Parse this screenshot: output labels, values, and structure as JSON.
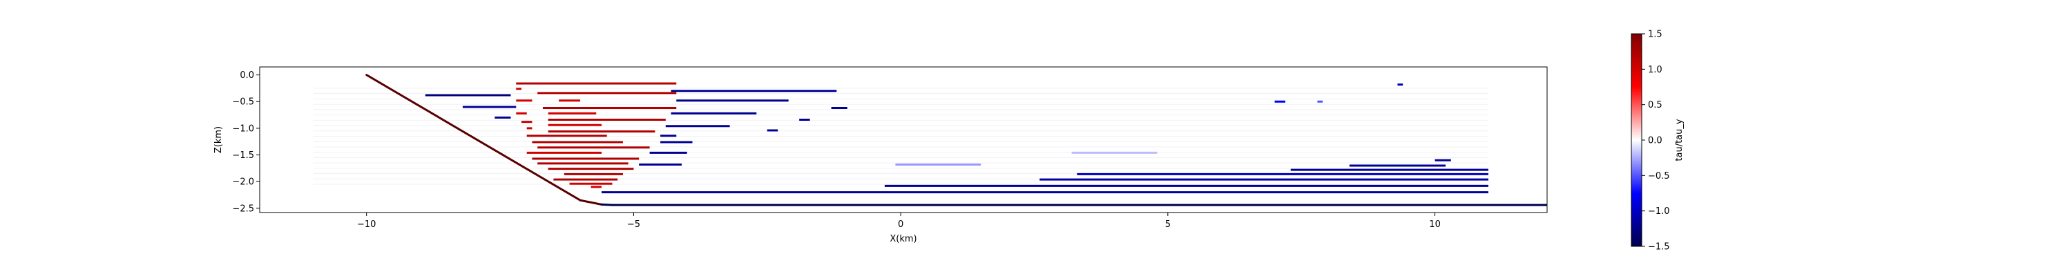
{
  "chart_data": {
    "type": "line",
    "title": "",
    "xlabel": "X(km)",
    "ylabel": "Z(km)",
    "xlim": [
      -12.0,
      12.1
    ],
    "ylim": [
      -2.58,
      0.15
    ],
    "xticks": [
      -10,
      -5,
      0,
      5,
      10
    ],
    "xtick_labels": [
      "−10",
      "−5",
      "0",
      "5",
      "10"
    ],
    "yticks": [
      0.0,
      -0.5,
      -1.0,
      -1.5,
      -2.0,
      -2.5
    ],
    "ytick_labels": [
      "0.0",
      "−0.5",
      "−1.0",
      "−1.5",
      "−2.0",
      "−2.5"
    ],
    "grid": false,
    "legend": "none",
    "colorbar": {
      "label": "tau/tau_y",
      "range": [
        -1.5,
        1.5
      ],
      "ticks": [
        1.5,
        1.0,
        0.5,
        0.0,
        -0.5,
        -1.0,
        -1.5
      ],
      "tick_labels": [
        "1.5",
        "1.0",
        "0.5",
        "0.0",
        "−0.5",
        "−1.0",
        "−1.5"
      ],
      "colormap": "seismic",
      "colors": [
        "#00004c",
        "#0000ff",
        "#ffffff",
        "#ff0000",
        "#7f0000"
      ]
    },
    "boundary": {
      "name": "boundary",
      "x": [
        -10.0,
        -6.0,
        -5.6,
        -5.4,
        12.1
      ],
      "z": [
        0.0,
        -2.35,
        -2.43,
        -2.44,
        -2.44
      ],
      "color_left": "#5a0000",
      "color_right": "#00004c"
    },
    "segments": [
      {
        "x0": -7.2,
        "x1": -4.2,
        "z": -0.16,
        "v": 1.2
      },
      {
        "x0": -7.2,
        "x1": -7.1,
        "z": -0.26,
        "v": 1.0
      },
      {
        "x0": -6.8,
        "x1": -4.2,
        "z": -0.34,
        "v": 1.2
      },
      {
        "x0": -7.2,
        "x1": -6.9,
        "z": -0.48,
        "v": 1.0
      },
      {
        "x0": -6.4,
        "x1": -6.0,
        "z": -0.48,
        "v": 1.0
      },
      {
        "x0": -6.7,
        "x1": -4.2,
        "z": -0.62,
        "v": 1.2
      },
      {
        "x0": -7.2,
        "x1": -7.0,
        "z": -0.72,
        "v": 1.0
      },
      {
        "x0": -6.6,
        "x1": -5.7,
        "z": -0.72,
        "v": 1.0
      },
      {
        "x0": -6.6,
        "x1": -4.4,
        "z": -0.84,
        "v": 1.2
      },
      {
        "x0": -7.1,
        "x1": -6.9,
        "z": -0.88,
        "v": 1.0
      },
      {
        "x0": -6.6,
        "x1": -5.6,
        "z": -0.94,
        "v": 1.0
      },
      {
        "x0": -7.0,
        "x1": -6.9,
        "z": -1.0,
        "v": 1.0
      },
      {
        "x0": -6.6,
        "x1": -4.6,
        "z": -1.06,
        "v": 1.2
      },
      {
        "x0": -7.0,
        "x1": -5.5,
        "z": -1.14,
        "v": 1.2
      },
      {
        "x0": -6.9,
        "x1": -5.2,
        "z": -1.26,
        "v": 1.2
      },
      {
        "x0": -6.8,
        "x1": -4.7,
        "z": -1.36,
        "v": 1.2
      },
      {
        "x0": -7.0,
        "x1": -5.6,
        "z": -1.46,
        "v": 1.0
      },
      {
        "x0": -6.9,
        "x1": -4.9,
        "z": -1.57,
        "v": 1.2
      },
      {
        "x0": -6.8,
        "x1": -5.1,
        "z": -1.66,
        "v": 1.2
      },
      {
        "x0": -6.6,
        "x1": -5.0,
        "z": -1.76,
        "v": 1.2
      },
      {
        "x0": -6.3,
        "x1": -5.2,
        "z": -1.86,
        "v": 1.2
      },
      {
        "x0": -6.5,
        "x1": -5.3,
        "z": -1.96,
        "v": 1.2
      },
      {
        "x0": -6.2,
        "x1": -5.4,
        "z": -2.04,
        "v": 1.0
      },
      {
        "x0": -5.8,
        "x1": -5.6,
        "z": -2.1,
        "v": 1.0
      },
      {
        "x0": -8.9,
        "x1": -7.3,
        "z": -0.38,
        "v": -1.3
      },
      {
        "x0": -4.3,
        "x1": -1.2,
        "z": -0.3,
        "v": -1.2
      },
      {
        "x0": -4.2,
        "x1": -2.1,
        "z": -0.48,
        "v": -1.2
      },
      {
        "x0": -8.2,
        "x1": -7.2,
        "z": -0.6,
        "v": -1.2
      },
      {
        "x0": -1.3,
        "x1": -1.0,
        "z": -0.62,
        "v": -1.2
      },
      {
        "x0": -4.3,
        "x1": -2.7,
        "z": -0.72,
        "v": -1.2
      },
      {
        "x0": -7.6,
        "x1": -7.3,
        "z": -0.8,
        "v": -1.2
      },
      {
        "x0": -1.9,
        "x1": -1.7,
        "z": -0.84,
        "v": -1.2
      },
      {
        "x0": -4.4,
        "x1": -3.2,
        "z": -0.96,
        "v": -1.2
      },
      {
        "x0": -2.5,
        "x1": -2.3,
        "z": -1.04,
        "v": -1.2
      },
      {
        "x0": -4.5,
        "x1": -4.2,
        "z": -1.14,
        "v": -1.2
      },
      {
        "x0": -4.5,
        "x1": -3.9,
        "z": -1.26,
        "v": -1.2
      },
      {
        "x0": -4.7,
        "x1": -4.0,
        "z": -1.46,
        "v": -1.2
      },
      {
        "x0": -4.9,
        "x1": -4.1,
        "z": -1.68,
        "v": -1.2
      },
      {
        "x0": 9.3,
        "x1": 9.4,
        "z": -0.18,
        "v": -1.0
      },
      {
        "x0": 7.0,
        "x1": 7.2,
        "z": -0.5,
        "v": -0.8
      },
      {
        "x0": 7.8,
        "x1": 7.9,
        "z": -0.5,
        "v": -0.5
      },
      {
        "x0": -0.1,
        "x1": 1.5,
        "z": -1.68,
        "v": -0.3
      },
      {
        "x0": 3.2,
        "x1": 4.8,
        "z": -1.46,
        "v": -0.2
      },
      {
        "x0": 10.0,
        "x1": 10.3,
        "z": -1.6,
        "v": -1.2
      },
      {
        "x0": 8.4,
        "x1": 10.2,
        "z": -1.7,
        "v": -1.2
      },
      {
        "x0": 7.3,
        "x1": 11.0,
        "z": -1.78,
        "v": -1.2
      },
      {
        "x0": 3.3,
        "x1": 11.0,
        "z": -1.86,
        "v": -1.0
      },
      {
        "x0": 2.6,
        "x1": 11.0,
        "z": -1.96,
        "v": -1.1
      },
      {
        "x0": -0.3,
        "x1": 11.0,
        "z": -2.08,
        "v": -1.2
      },
      {
        "x0": -5.6,
        "x1": 11.0,
        "z": -2.2,
        "v": -1.2
      }
    ]
  }
}
